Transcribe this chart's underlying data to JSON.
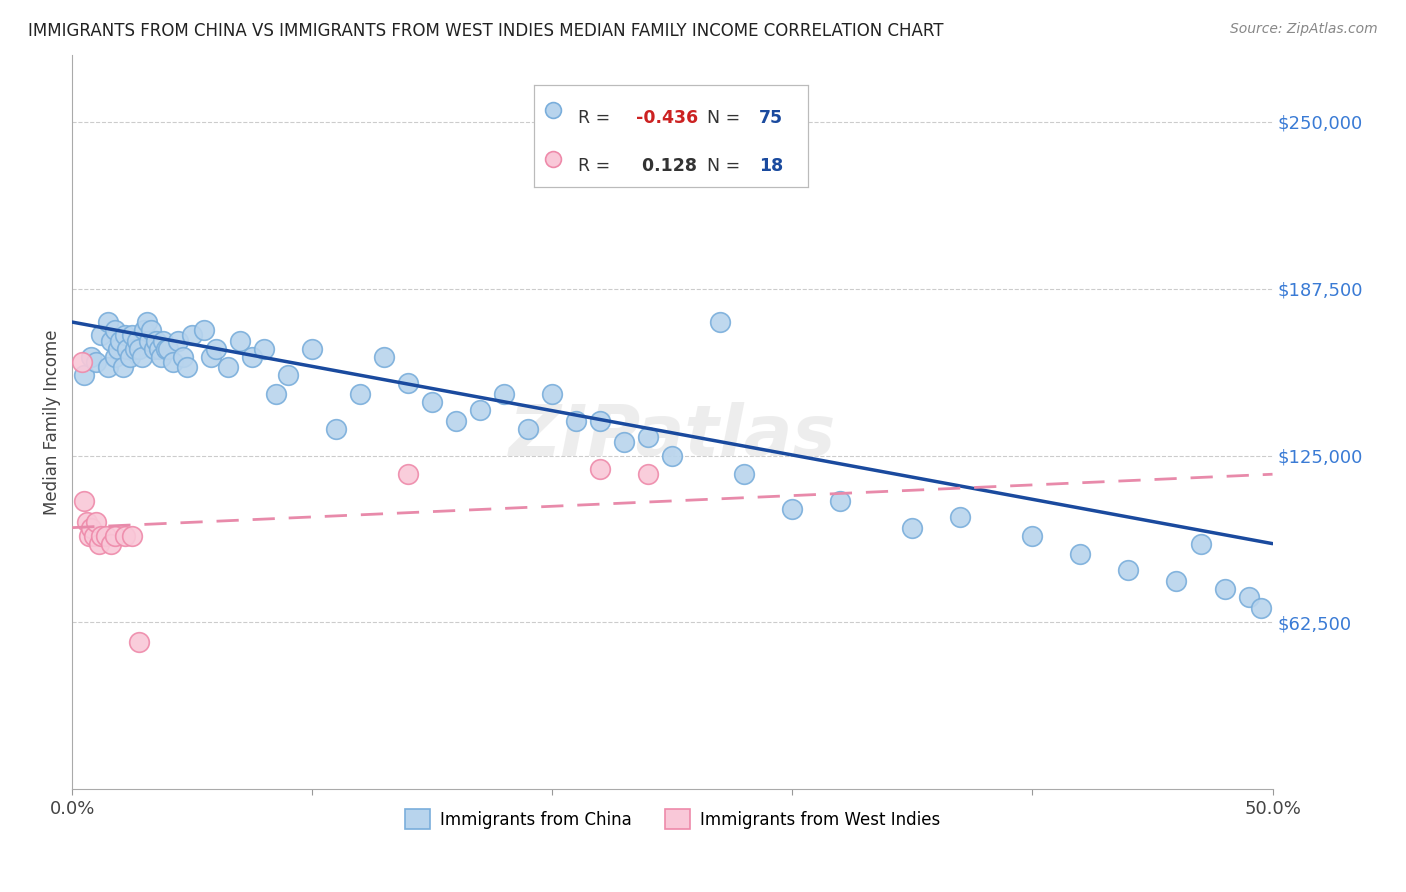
{
  "title": "IMMIGRANTS FROM CHINA VS IMMIGRANTS FROM WEST INDIES MEDIAN FAMILY INCOME CORRELATION CHART",
  "source": "Source: ZipAtlas.com",
  "ylabel": "Median Family Income",
  "ytick_labels": [
    "$62,500",
    "$125,000",
    "$187,500",
    "$250,000"
  ],
  "ytick_values": [
    62500,
    125000,
    187500,
    250000
  ],
  "ymin": 0,
  "ymax": 275000,
  "xmin": 0.0,
  "xmax": 0.5,
  "china_color": "#b8d4ed",
  "china_edge": "#7aaedb",
  "wi_color": "#f9c8d8",
  "wi_edge": "#ee8aaa",
  "china_line_color": "#1a4a9e",
  "wi_line_color": "#e88aaa",
  "china_x": [
    0.005,
    0.008,
    0.01,
    0.012,
    0.015,
    0.015,
    0.016,
    0.018,
    0.018,
    0.019,
    0.02,
    0.021,
    0.022,
    0.023,
    0.024,
    0.025,
    0.026,
    0.027,
    0.028,
    0.029,
    0.03,
    0.031,
    0.032,
    0.033,
    0.034,
    0.035,
    0.036,
    0.037,
    0.038,
    0.039,
    0.04,
    0.042,
    0.044,
    0.046,
    0.048,
    0.05,
    0.055,
    0.058,
    0.06,
    0.065,
    0.07,
    0.075,
    0.08,
    0.085,
    0.09,
    0.1,
    0.11,
    0.12,
    0.13,
    0.14,
    0.15,
    0.16,
    0.17,
    0.18,
    0.19,
    0.2,
    0.21,
    0.22,
    0.23,
    0.24,
    0.25,
    0.27,
    0.28,
    0.3,
    0.32,
    0.35,
    0.37,
    0.4,
    0.42,
    0.44,
    0.46,
    0.47,
    0.48,
    0.49,
    0.495
  ],
  "china_y": [
    155000,
    162000,
    160000,
    170000,
    175000,
    158000,
    168000,
    172000,
    162000,
    165000,
    168000,
    158000,
    170000,
    165000,
    162000,
    170000,
    165000,
    168000,
    165000,
    162000,
    172000,
    175000,
    168000,
    172000,
    165000,
    168000,
    165000,
    162000,
    168000,
    165000,
    165000,
    160000,
    168000,
    162000,
    158000,
    170000,
    172000,
    162000,
    165000,
    158000,
    168000,
    162000,
    165000,
    148000,
    155000,
    165000,
    135000,
    148000,
    162000,
    152000,
    145000,
    138000,
    142000,
    148000,
    135000,
    148000,
    138000,
    138000,
    130000,
    132000,
    125000,
    175000,
    118000,
    105000,
    108000,
    98000,
    102000,
    95000,
    88000,
    82000,
    78000,
    92000,
    75000,
    72000,
    68000
  ],
  "wi_x": [
    0.004,
    0.005,
    0.006,
    0.007,
    0.008,
    0.009,
    0.01,
    0.011,
    0.012,
    0.014,
    0.016,
    0.018,
    0.022,
    0.025,
    0.028,
    0.14,
    0.22,
    0.24
  ],
  "wi_y": [
    160000,
    108000,
    100000,
    95000,
    98000,
    95000,
    100000,
    92000,
    95000,
    95000,
    92000,
    95000,
    95000,
    95000,
    55000,
    118000,
    120000,
    118000
  ],
  "china_trendline_x": [
    0.0,
    0.5
  ],
  "china_trendline_y": [
    175000,
    92000
  ],
  "wi_trendline_x": [
    0.0,
    0.5
  ],
  "wi_trendline_y": [
    98000,
    118000
  ]
}
